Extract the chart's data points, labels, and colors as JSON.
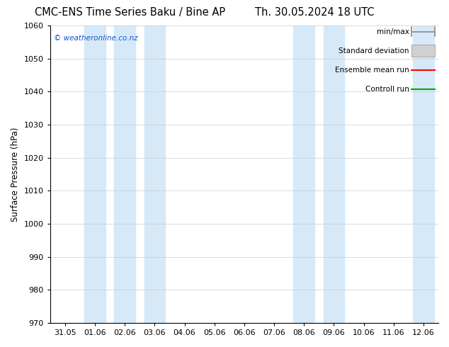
{
  "title_left": "CMC-ENS Time Series Baku / Bine AP",
  "title_right": "Th. 30.05.2024 18 UTC",
  "ylabel": "Surface Pressure (hPa)",
  "ylim": [
    970,
    1060
  ],
  "yticks": [
    970,
    980,
    990,
    1000,
    1010,
    1020,
    1030,
    1040,
    1050,
    1060
  ],
  "xlabels": [
    "31.05",
    "01.06",
    "02.06",
    "03.06",
    "04.06",
    "05.06",
    "06.06",
    "07.06",
    "08.06",
    "09.06",
    "10.06",
    "11.06",
    "12.06"
  ],
  "watermark": "© weatheronline.co.nz",
  "bg_color": "#ffffff",
  "band_color": "#d6e9f8",
  "legend_entries": [
    "min/max",
    "Standard deviation",
    "Ensemble mean run",
    "Controll run"
  ],
  "legend_colors": [
    "#888888",
    "#cccccc",
    "#ff0000",
    "#00aa00"
  ],
  "shade_x_indices": [
    1,
    2,
    3,
    8,
    9,
    12
  ],
  "title_fontsize": 10.5,
  "tick_fontsize": 8,
  "ylabel_fontsize": 8.5
}
